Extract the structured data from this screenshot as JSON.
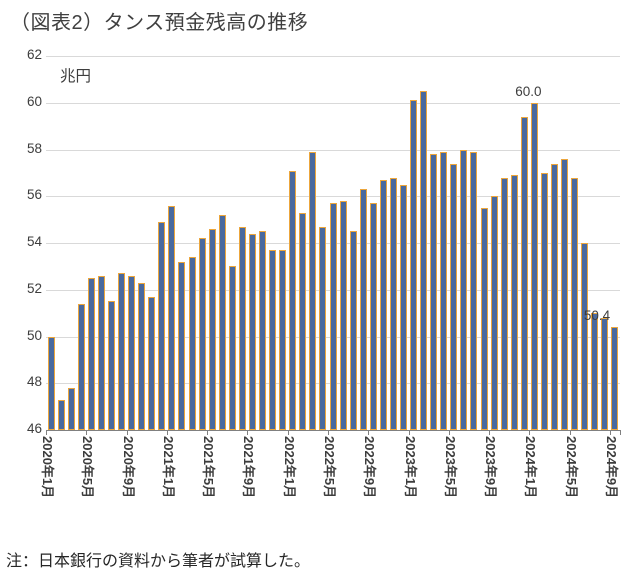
{
  "title": "（図表2）タンス預金残高の推移",
  "unit_label": "兆円",
  "note": "注：日本銀行の資料から筆者が試算した。",
  "chart_data": {
    "type": "bar",
    "title": "（図表2）タンス預金残高の推移",
    "xlabel": "",
    "ylabel": "兆円",
    "ylim": [
      46,
      62
    ],
    "yticks": [
      46,
      48,
      50,
      52,
      54,
      56,
      58,
      60,
      62
    ],
    "grid": true,
    "legend": "none",
    "x_frequency": "monthly",
    "x_tick_every": 4,
    "x_tick_labels": [
      "2020年1月",
      "2020年5月",
      "2020年9月",
      "2021年1月",
      "2021年5月",
      "2021年9月",
      "2022年1月",
      "2022年5月",
      "2022年9月",
      "2023年1月",
      "2023年5月",
      "2023年9月",
      "2024年1月",
      "2024年5月",
      "2024年9月"
    ],
    "values": [
      50.0,
      47.3,
      47.8,
      51.4,
      52.5,
      52.6,
      51.5,
      52.7,
      52.6,
      52.3,
      51.7,
      54.9,
      55.6,
      53.2,
      53.4,
      54.2,
      54.6,
      55.2,
      53.0,
      54.7,
      54.4,
      54.5,
      53.7,
      53.7,
      57.1,
      55.3,
      57.9,
      54.7,
      55.7,
      55.8,
      54.5,
      56.3,
      55.7,
      56.7,
      56.8,
      56.5,
      60.1,
      60.5,
      57.8,
      57.9,
      57.4,
      58.0,
      57.9,
      55.5,
      56.0,
      56.8,
      56.9,
      59.4,
      60.0,
      57.0,
      57.4,
      57.6,
      56.8,
      54.0,
      51.0,
      50.8,
      50.4
    ],
    "annotations": [
      {
        "text": "60.0",
        "index": 48,
        "dx": -6
      },
      {
        "text": "50.4",
        "index": 56,
        "dx": -18
      }
    ],
    "bar_fill": "#49699e",
    "bar_border": "#eca63c",
    "gridline_color": "#d9d9d9",
    "axis_color": "#808080"
  }
}
